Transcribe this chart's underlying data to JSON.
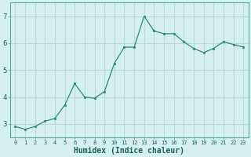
{
  "x": [
    0,
    1,
    2,
    3,
    4,
    5,
    6,
    7,
    8,
    9,
    10,
    11,
    12,
    13,
    14,
    15,
    16,
    17,
    18,
    19,
    20,
    21,
    22,
    23
  ],
  "y": [
    2.9,
    2.8,
    2.9,
    3.1,
    3.2,
    3.7,
    4.5,
    4.0,
    3.95,
    4.2,
    5.25,
    5.85,
    5.85,
    7.0,
    6.45,
    6.35,
    6.35,
    6.05,
    5.8,
    5.65,
    5.8,
    6.05,
    5.95,
    5.85
  ],
  "line_color": "#2a8a78",
  "marker_color": "#2a8a78",
  "bg_color": "#d6f0f0",
  "grid_color": "#b8dada",
  "xlabel": "Humidex (Indice chaleur)",
  "ylim": [
    2.5,
    7.5
  ],
  "xlim": [
    -0.5,
    23.5
  ],
  "yticks": [
    3,
    4,
    5,
    6,
    7
  ],
  "xtick_fontsize": 5.0,
  "ytick_fontsize": 6.5,
  "xlabel_fontsize": 7.0
}
